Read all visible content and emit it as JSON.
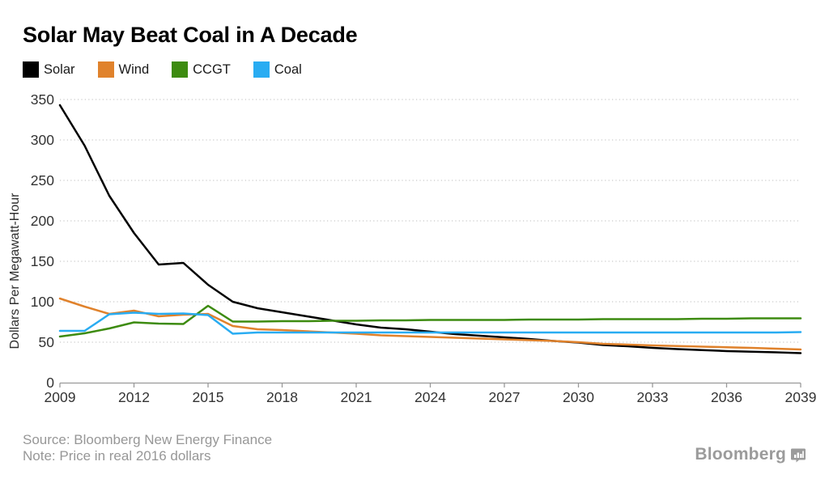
{
  "title": "Solar May Beat Coal in A Decade",
  "y_axis_title": "Dollars Per Megawatt-Hour",
  "footer": {
    "source": "Source: Bloomberg New Energy Finance",
    "note": "Note: Price in real 2016 dollars",
    "logo": "Bloomberg"
  },
  "colors": {
    "grid": "#c9c9c9",
    "axis": "#999999",
    "tick_text": "#333333",
    "footer_text": "#979797",
    "logo_gray": "#9b9b9b"
  },
  "chart_data": {
    "type": "line",
    "title": "Solar May Beat Coal in A Decade",
    "xlabel": "",
    "ylabel": "Dollars Per Megawatt-Hour",
    "x": [
      2009,
      2010,
      2011,
      2012,
      2013,
      2014,
      2015,
      2016,
      2017,
      2018,
      2019,
      2020,
      2021,
      2022,
      2023,
      2024,
      2025,
      2026,
      2027,
      2028,
      2029,
      2030,
      2031,
      2032,
      2033,
      2034,
      2035,
      2036,
      2037,
      2038,
      2039
    ],
    "x_tick_labels": [
      "2009",
      "2012",
      "2015",
      "2018",
      "2021",
      "2024",
      "2027",
      "2030",
      "2033",
      "2036",
      "2039"
    ],
    "x_tick_years": [
      2009,
      2012,
      2015,
      2018,
      2021,
      2024,
      2027,
      2030,
      2033,
      2036,
      2039
    ],
    "ylim": [
      0,
      350
    ],
    "y_ticks": [
      0,
      50,
      100,
      150,
      200,
      250,
      300,
      350
    ],
    "grid": "dotted horizontal",
    "legend_position": "top-left",
    "series": [
      {
        "name": "Solar",
        "color": "#000000",
        "values": [
          343,
          293,
          231,
          185,
          146,
          148,
          121,
          100,
          92,
          87,
          82,
          77,
          72,
          68,
          66,
          63,
          60,
          58,
          56,
          54,
          51.5,
          49.5,
          46.5,
          45,
          43,
          41.5,
          40.3,
          39,
          38.3,
          37.5,
          36.5
        ]
      },
      {
        "name": "Wind",
        "color": "#e0822c",
        "values": [
          104,
          94,
          85,
          89,
          82,
          84,
          85,
          70,
          66,
          65,
          63.5,
          62,
          60.5,
          58.5,
          57.5,
          56.5,
          55.5,
          54.5,
          53.5,
          52.5,
          51.5,
          50,
          48,
          47,
          46,
          45.2,
          44.5,
          43.8,
          43,
          42,
          41
        ]
      },
      {
        "name": "CCGT",
        "color": "#3d8b10",
        "values": [
          57,
          61,
          67,
          74.5,
          73,
          72.5,
          95,
          75.5,
          75.5,
          76,
          76,
          76.5,
          76.5,
          77,
          77,
          77.5,
          77.5,
          77.5,
          77.5,
          78,
          78,
          78,
          78.5,
          78.5,
          78.5,
          78.5,
          79,
          79,
          79.5,
          79.5,
          79.5
        ]
      },
      {
        "name": "Coal",
        "color": "#29acf2",
        "values": [
          64,
          64,
          84.5,
          86.5,
          85,
          85.5,
          83.5,
          60.5,
          62,
          62,
          62,
          62,
          62,
          62,
          62,
          62,
          62,
          62,
          62,
          62,
          62,
          62,
          62,
          62,
          62,
          62,
          62,
          62,
          62,
          62,
          62.5
        ]
      }
    ]
  }
}
